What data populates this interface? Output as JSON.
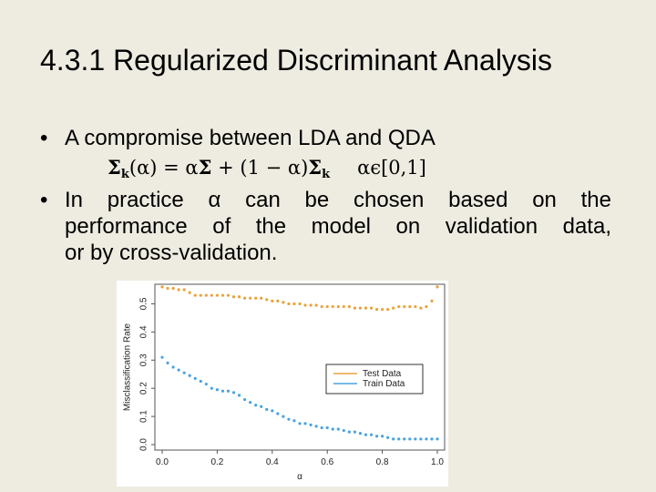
{
  "slide": {
    "title": "4.3.1 Regularized Discriminant Analysis",
    "bullet1": "A compromise between LDA and QDA",
    "bullet2_lines": [
      "In practice α can be chosen based on the",
      "performance of the model on validation data,",
      "or by cross-validation."
    ],
    "bullet_symbol": "•",
    "formula": {
      "lhs_sigma": "Σ",
      "lhs_sub": "k",
      "lhs_arg": "(α) = α",
      "mid_sigma": "Σ",
      "mid": " + (1 − α)",
      "rhs_sigma": "Σ",
      "rhs_sub": "k",
      "range": "αϵ[0,1]"
    }
  },
  "chart_data": {
    "type": "scatter",
    "title": "",
    "xlabel": "α",
    "ylabel": "Misclassification Rate",
    "xlim": [
      0.0,
      1.0
    ],
    "ylim": [
      0.0,
      0.55
    ],
    "x_ticks": [
      "0.0",
      "0.2",
      "0.4",
      "0.6",
      "0.8",
      "1.0"
    ],
    "y_ticks": [
      "0.0",
      "0.1",
      "0.2",
      "0.3",
      "0.4",
      "0.5"
    ],
    "legend_position": "center-right",
    "grid": false,
    "series": [
      {
        "name": "Test Data",
        "color": "#e8a33b",
        "x": [
          0.0,
          0.02,
          0.04,
          0.06,
          0.08,
          0.1,
          0.12,
          0.14,
          0.16,
          0.18,
          0.2,
          0.22,
          0.24,
          0.26,
          0.28,
          0.3,
          0.32,
          0.34,
          0.36,
          0.38,
          0.4,
          0.42,
          0.44,
          0.46,
          0.48,
          0.5,
          0.52,
          0.54,
          0.56,
          0.58,
          0.6,
          0.62,
          0.64,
          0.66,
          0.68,
          0.7,
          0.72,
          0.74,
          0.76,
          0.78,
          0.8,
          0.82,
          0.84,
          0.86,
          0.88,
          0.9,
          0.92,
          0.94,
          0.96,
          0.98,
          1.0
        ],
        "y": [
          0.56,
          0.555,
          0.555,
          0.55,
          0.55,
          0.54,
          0.53,
          0.53,
          0.53,
          0.53,
          0.53,
          0.53,
          0.53,
          0.525,
          0.525,
          0.52,
          0.52,
          0.52,
          0.52,
          0.515,
          0.51,
          0.51,
          0.505,
          0.5,
          0.5,
          0.5,
          0.495,
          0.495,
          0.495,
          0.49,
          0.49,
          0.49,
          0.49,
          0.49,
          0.49,
          0.485,
          0.485,
          0.485,
          0.485,
          0.48,
          0.48,
          0.48,
          0.485,
          0.49,
          0.49,
          0.49,
          0.49,
          0.485,
          0.49,
          0.51,
          0.56
        ]
      },
      {
        "name": "Train Data",
        "color": "#4aa3df",
        "x": [
          0.0,
          0.02,
          0.04,
          0.06,
          0.08,
          0.1,
          0.12,
          0.14,
          0.16,
          0.18,
          0.2,
          0.22,
          0.24,
          0.26,
          0.28,
          0.3,
          0.32,
          0.34,
          0.36,
          0.38,
          0.4,
          0.42,
          0.44,
          0.46,
          0.48,
          0.5,
          0.52,
          0.54,
          0.56,
          0.58,
          0.6,
          0.62,
          0.64,
          0.66,
          0.68,
          0.7,
          0.72,
          0.74,
          0.76,
          0.78,
          0.8,
          0.82,
          0.84,
          0.86,
          0.88,
          0.9,
          0.92,
          0.94,
          0.96,
          0.98,
          1.0
        ],
        "y": [
          0.31,
          0.29,
          0.275,
          0.265,
          0.255,
          0.245,
          0.235,
          0.225,
          0.215,
          0.2,
          0.195,
          0.19,
          0.19,
          0.185,
          0.175,
          0.16,
          0.15,
          0.14,
          0.135,
          0.125,
          0.12,
          0.11,
          0.1,
          0.09,
          0.085,
          0.075,
          0.075,
          0.07,
          0.065,
          0.06,
          0.06,
          0.055,
          0.055,
          0.05,
          0.045,
          0.045,
          0.04,
          0.035,
          0.035,
          0.03,
          0.03,
          0.025,
          0.02,
          0.02,
          0.02,
          0.02,
          0.02,
          0.02,
          0.02,
          0.02,
          0.02
        ]
      }
    ]
  }
}
